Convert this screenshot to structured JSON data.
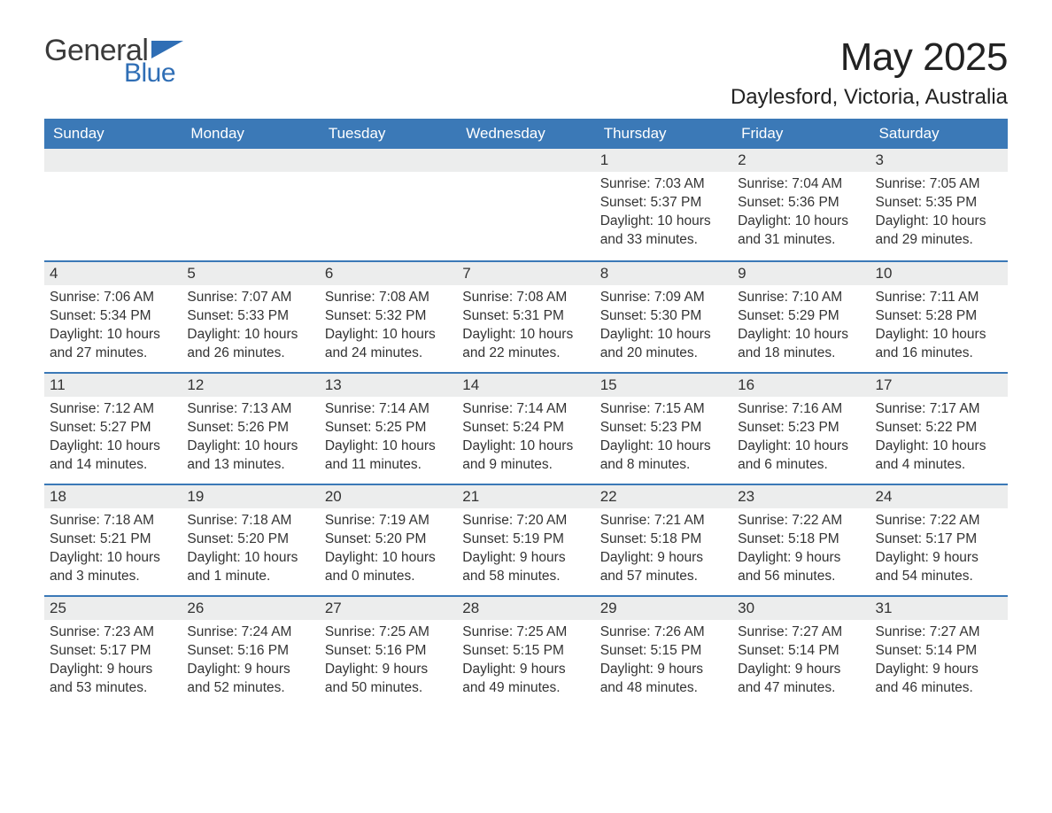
{
  "brand": {
    "word1": "General",
    "word2": "Blue",
    "text_color": "#3b3b3b",
    "accent_color": "#2f6eb5"
  },
  "title": {
    "month_year": "May 2025",
    "location": "Daylesford, Victoria, Australia"
  },
  "colors": {
    "header_bg": "#3b79b7",
    "header_text": "#ffffff",
    "daybar_bg": "#eceded",
    "daybar_border": "#3b79b7",
    "body_text": "#333333",
    "page_bg": "#ffffff"
  },
  "weekdays": [
    "Sunday",
    "Monday",
    "Tuesday",
    "Wednesday",
    "Thursday",
    "Friday",
    "Saturday"
  ],
  "weeks": [
    [
      null,
      null,
      null,
      null,
      {
        "n": "1",
        "sunrise": "7:03 AM",
        "sunset": "5:37 PM",
        "daylight": "10 hours and 33 minutes."
      },
      {
        "n": "2",
        "sunrise": "7:04 AM",
        "sunset": "5:36 PM",
        "daylight": "10 hours and 31 minutes."
      },
      {
        "n": "3",
        "sunrise": "7:05 AM",
        "sunset": "5:35 PM",
        "daylight": "10 hours and 29 minutes."
      }
    ],
    [
      {
        "n": "4",
        "sunrise": "7:06 AM",
        "sunset": "5:34 PM",
        "daylight": "10 hours and 27 minutes."
      },
      {
        "n": "5",
        "sunrise": "7:07 AM",
        "sunset": "5:33 PM",
        "daylight": "10 hours and 26 minutes."
      },
      {
        "n": "6",
        "sunrise": "7:08 AM",
        "sunset": "5:32 PM",
        "daylight": "10 hours and 24 minutes."
      },
      {
        "n": "7",
        "sunrise": "7:08 AM",
        "sunset": "5:31 PM",
        "daylight": "10 hours and 22 minutes."
      },
      {
        "n": "8",
        "sunrise": "7:09 AM",
        "sunset": "5:30 PM",
        "daylight": "10 hours and 20 minutes."
      },
      {
        "n": "9",
        "sunrise": "7:10 AM",
        "sunset": "5:29 PM",
        "daylight": "10 hours and 18 minutes."
      },
      {
        "n": "10",
        "sunrise": "7:11 AM",
        "sunset": "5:28 PM",
        "daylight": "10 hours and 16 minutes."
      }
    ],
    [
      {
        "n": "11",
        "sunrise": "7:12 AM",
        "sunset": "5:27 PM",
        "daylight": "10 hours and 14 minutes."
      },
      {
        "n": "12",
        "sunrise": "7:13 AM",
        "sunset": "5:26 PM",
        "daylight": "10 hours and 13 minutes."
      },
      {
        "n": "13",
        "sunrise": "7:14 AM",
        "sunset": "5:25 PM",
        "daylight": "10 hours and 11 minutes."
      },
      {
        "n": "14",
        "sunrise": "7:14 AM",
        "sunset": "5:24 PM",
        "daylight": "10 hours and 9 minutes."
      },
      {
        "n": "15",
        "sunrise": "7:15 AM",
        "sunset": "5:23 PM",
        "daylight": "10 hours and 8 minutes."
      },
      {
        "n": "16",
        "sunrise": "7:16 AM",
        "sunset": "5:23 PM",
        "daylight": "10 hours and 6 minutes."
      },
      {
        "n": "17",
        "sunrise": "7:17 AM",
        "sunset": "5:22 PM",
        "daylight": "10 hours and 4 minutes."
      }
    ],
    [
      {
        "n": "18",
        "sunrise": "7:18 AM",
        "sunset": "5:21 PM",
        "daylight": "10 hours and 3 minutes."
      },
      {
        "n": "19",
        "sunrise": "7:18 AM",
        "sunset": "5:20 PM",
        "daylight": "10 hours and 1 minute."
      },
      {
        "n": "20",
        "sunrise": "7:19 AM",
        "sunset": "5:20 PM",
        "daylight": "10 hours and 0 minutes."
      },
      {
        "n": "21",
        "sunrise": "7:20 AM",
        "sunset": "5:19 PM",
        "daylight": "9 hours and 58 minutes."
      },
      {
        "n": "22",
        "sunrise": "7:21 AM",
        "sunset": "5:18 PM",
        "daylight": "9 hours and 57 minutes."
      },
      {
        "n": "23",
        "sunrise": "7:22 AM",
        "sunset": "5:18 PM",
        "daylight": "9 hours and 56 minutes."
      },
      {
        "n": "24",
        "sunrise": "7:22 AM",
        "sunset": "5:17 PM",
        "daylight": "9 hours and 54 minutes."
      }
    ],
    [
      {
        "n": "25",
        "sunrise": "7:23 AM",
        "sunset": "5:17 PM",
        "daylight": "9 hours and 53 minutes."
      },
      {
        "n": "26",
        "sunrise": "7:24 AM",
        "sunset": "5:16 PM",
        "daylight": "9 hours and 52 minutes."
      },
      {
        "n": "27",
        "sunrise": "7:25 AM",
        "sunset": "5:16 PM",
        "daylight": "9 hours and 50 minutes."
      },
      {
        "n": "28",
        "sunrise": "7:25 AM",
        "sunset": "5:15 PM",
        "daylight": "9 hours and 49 minutes."
      },
      {
        "n": "29",
        "sunrise": "7:26 AM",
        "sunset": "5:15 PM",
        "daylight": "9 hours and 48 minutes."
      },
      {
        "n": "30",
        "sunrise": "7:27 AM",
        "sunset": "5:14 PM",
        "daylight": "9 hours and 47 minutes."
      },
      {
        "n": "31",
        "sunrise": "7:27 AM",
        "sunset": "5:14 PM",
        "daylight": "9 hours and 46 minutes."
      }
    ]
  ],
  "labels": {
    "sunrise": "Sunrise:",
    "sunset": "Sunset:",
    "daylight": "Daylight:"
  }
}
